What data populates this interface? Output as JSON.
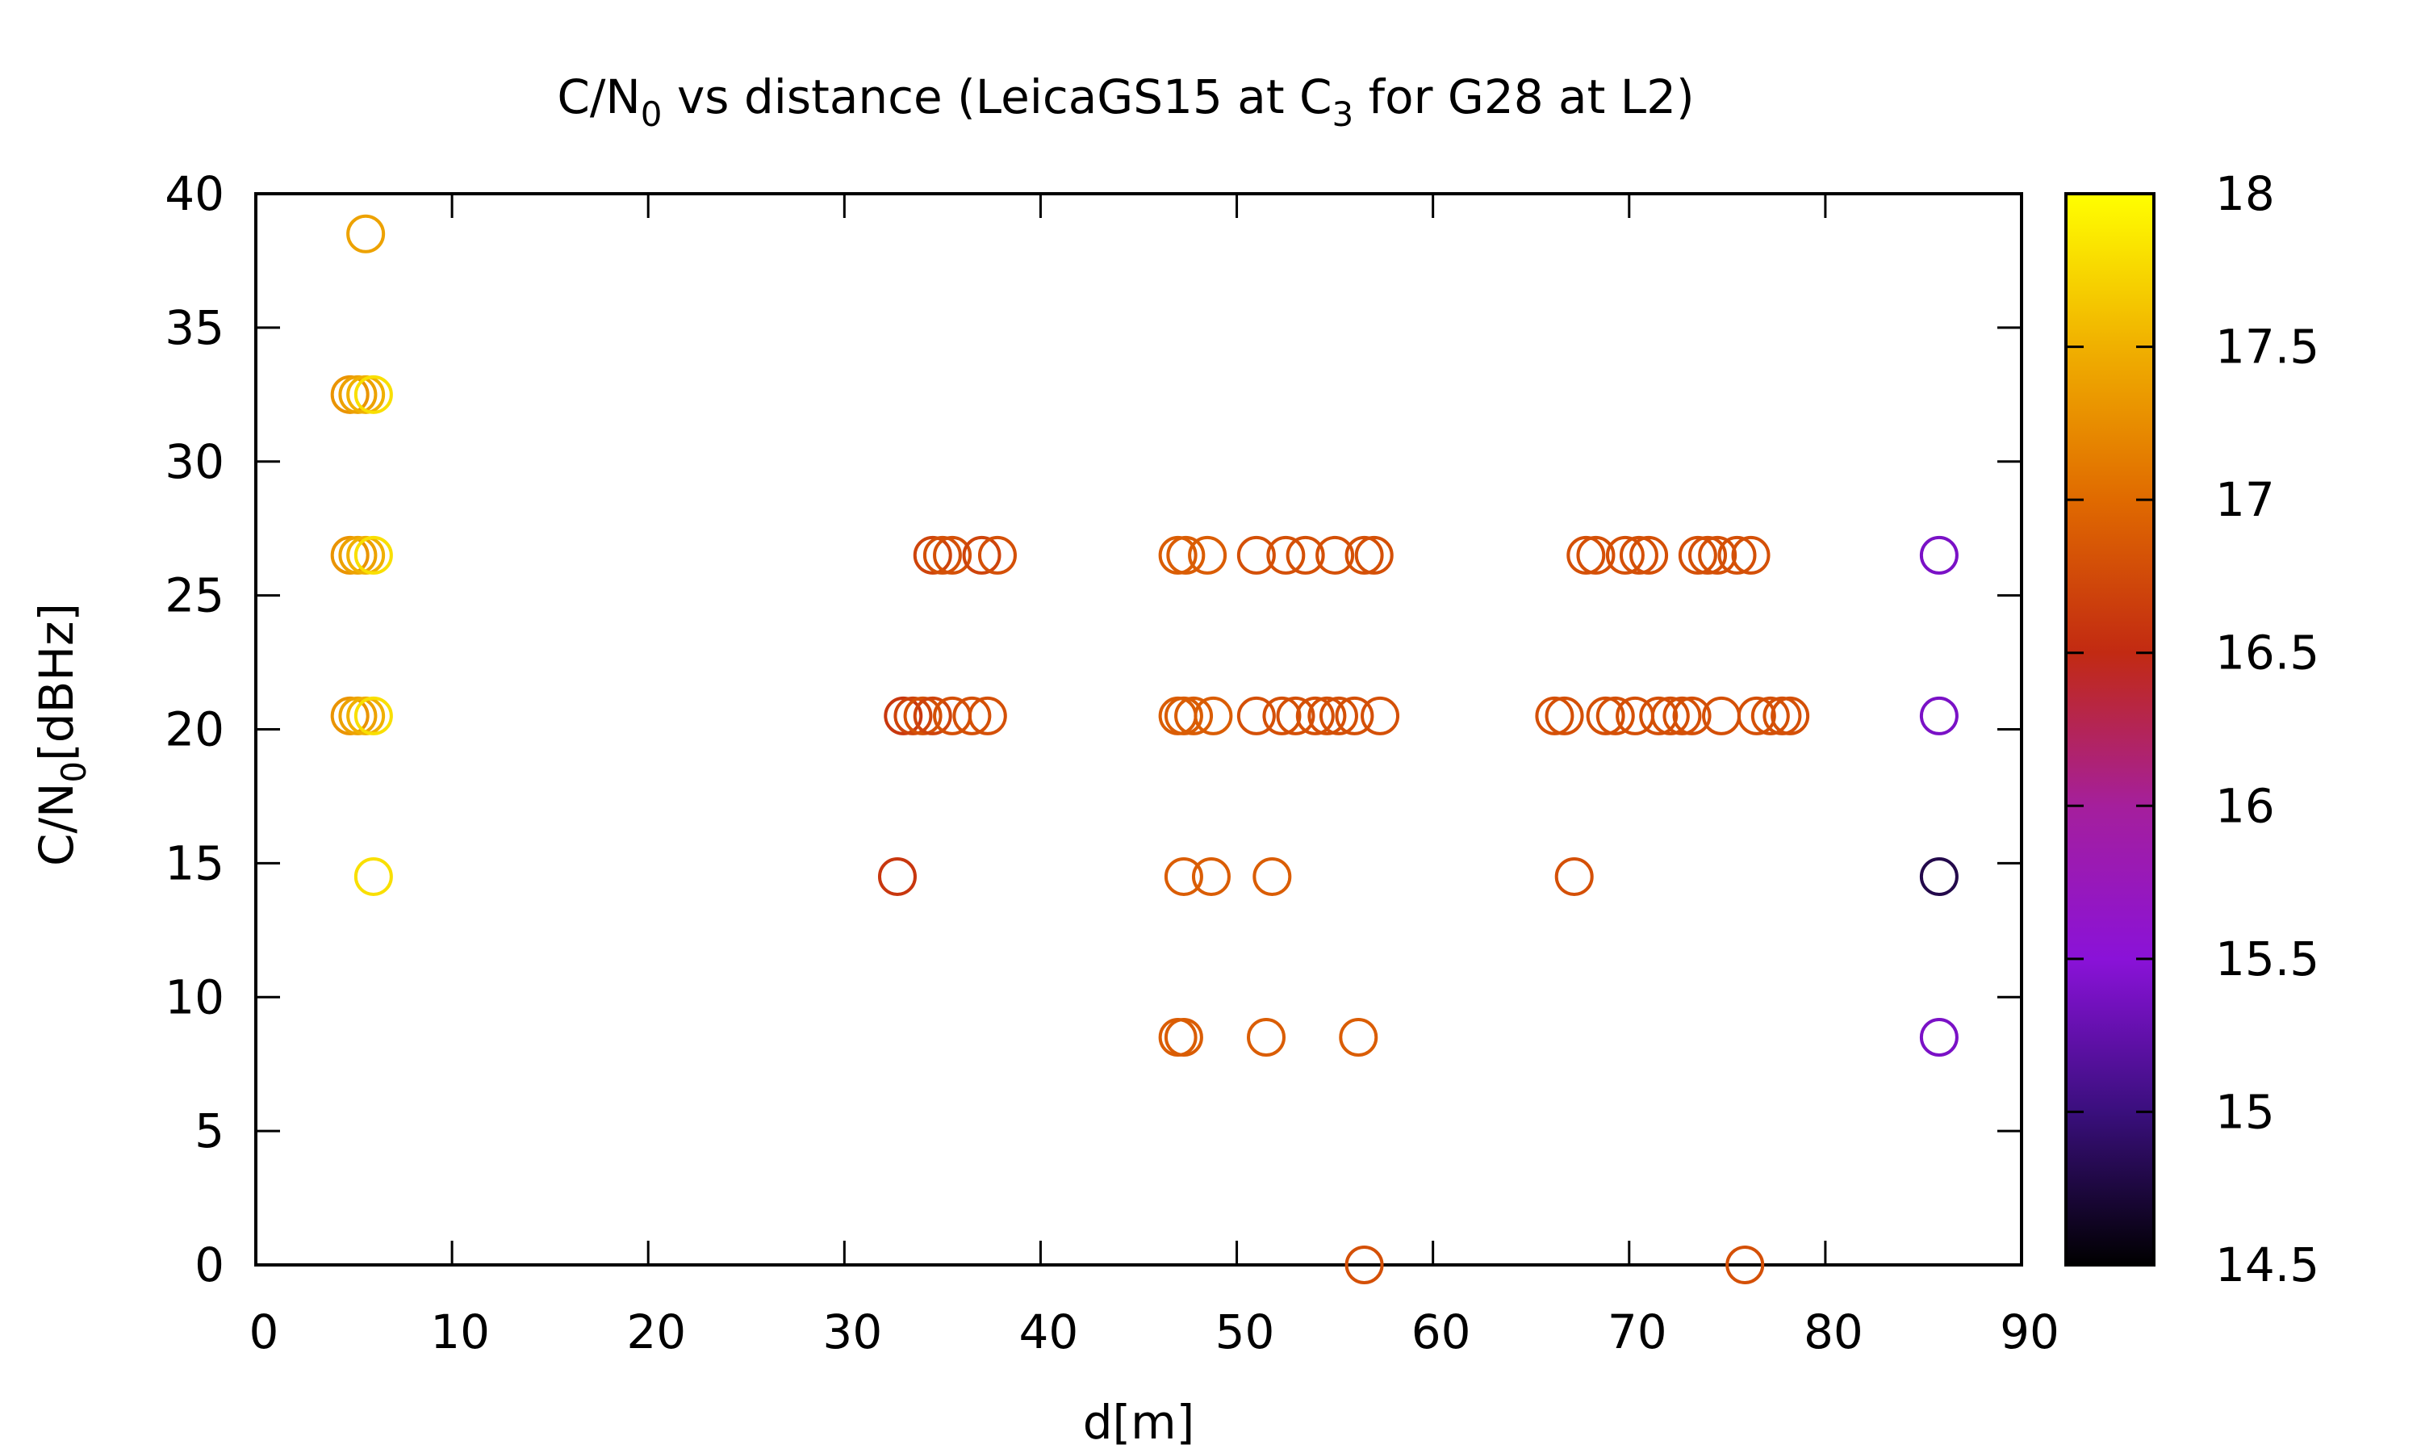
{
  "chart_data": {
    "type": "scatter",
    "title": {
      "pre": "C/N",
      "sub1": "0",
      "mid": " vs distance (LeicaGS15 at C",
      "sub2": "3",
      "post": " for G28 at L2)"
    },
    "xlabel": "d[m]",
    "ylabel": {
      "pre": "C/N",
      "sub": "0",
      "post": "[dBHz]"
    },
    "xlim": [
      0,
      90
    ],
    "ylim": [
      0,
      40
    ],
    "xticks": [
      0,
      10,
      20,
      30,
      40,
      50,
      60,
      70,
      80,
      90
    ],
    "yticks": [
      0,
      5,
      10,
      15,
      20,
      25,
      30,
      35,
      40
    ],
    "grid": false,
    "marker": "open-circle",
    "colorbar": {
      "range": [
        14.5,
        18
      ],
      "ticks": [
        "18",
        "17.5",
        "17",
        "16.5",
        "16",
        "15.5",
        "15",
        "14.5"
      ],
      "palette": [
        "#000000",
        "#3a0f7d",
        "#8a12d8",
        "#a51f9c",
        "#c22a12",
        "#e06a00",
        "#f0b000",
        "#ffff00"
      ]
    },
    "points": [
      {
        "x": 5.6,
        "y": 38.5,
        "c": 17.4
      },
      {
        "x": 4.8,
        "y": 32.5,
        "c": 17.3
      },
      {
        "x": 5.2,
        "y": 32.5,
        "c": 17.4
      },
      {
        "x": 5.6,
        "y": 32.5,
        "c": 17.5
      },
      {
        "x": 6.0,
        "y": 32.5,
        "c": 17.8
      },
      {
        "x": 4.8,
        "y": 26.5,
        "c": 17.3
      },
      {
        "x": 5.2,
        "y": 26.5,
        "c": 17.4
      },
      {
        "x": 5.6,
        "y": 26.5,
        "c": 17.5
      },
      {
        "x": 6.0,
        "y": 26.5,
        "c": 17.8
      },
      {
        "x": 4.8,
        "y": 20.5,
        "c": 17.3
      },
      {
        "x": 5.2,
        "y": 20.5,
        "c": 17.4
      },
      {
        "x": 5.6,
        "y": 20.5,
        "c": 17.5
      },
      {
        "x": 6.0,
        "y": 20.5,
        "c": 17.8
      },
      {
        "x": 6.0,
        "y": 14.5,
        "c": 17.8
      },
      {
        "x": 34.5,
        "y": 26.5,
        "c": 16.7
      },
      {
        "x": 35.0,
        "y": 26.5,
        "c": 16.8
      },
      {
        "x": 35.5,
        "y": 26.5,
        "c": 16.8
      },
      {
        "x": 37.0,
        "y": 26.5,
        "c": 16.7
      },
      {
        "x": 37.8,
        "y": 26.5,
        "c": 16.8
      },
      {
        "x": 33.0,
        "y": 20.5,
        "c": 16.6
      },
      {
        "x": 33.5,
        "y": 20.5,
        "c": 16.7
      },
      {
        "x": 34.0,
        "y": 20.5,
        "c": 16.8
      },
      {
        "x": 34.5,
        "y": 20.5,
        "c": 16.7
      },
      {
        "x": 35.5,
        "y": 20.5,
        "c": 16.8
      },
      {
        "x": 36.5,
        "y": 20.5,
        "c": 16.8
      },
      {
        "x": 37.3,
        "y": 20.5,
        "c": 16.8
      },
      {
        "x": 32.7,
        "y": 14.5,
        "c": 16.6
      },
      {
        "x": 47.0,
        "y": 26.5,
        "c": 16.9
      },
      {
        "x": 47.4,
        "y": 26.5,
        "c": 16.9
      },
      {
        "x": 48.5,
        "y": 26.5,
        "c": 16.9
      },
      {
        "x": 51.0,
        "y": 26.5,
        "c": 16.8
      },
      {
        "x": 52.5,
        "y": 26.5,
        "c": 16.8
      },
      {
        "x": 53.5,
        "y": 26.5,
        "c": 16.8
      },
      {
        "x": 55.0,
        "y": 26.5,
        "c": 16.8
      },
      {
        "x": 56.5,
        "y": 26.5,
        "c": 16.8
      },
      {
        "x": 57.0,
        "y": 26.5,
        "c": 16.8
      },
      {
        "x": 47.0,
        "y": 20.5,
        "c": 16.9
      },
      {
        "x": 47.3,
        "y": 20.5,
        "c": 16.9
      },
      {
        "x": 47.8,
        "y": 20.5,
        "c": 16.9
      },
      {
        "x": 48.8,
        "y": 20.5,
        "c": 16.9
      },
      {
        "x": 51.0,
        "y": 20.5,
        "c": 16.8
      },
      {
        "x": 52.3,
        "y": 20.5,
        "c": 16.8
      },
      {
        "x": 53.0,
        "y": 20.5,
        "c": 16.8
      },
      {
        "x": 54.0,
        "y": 20.5,
        "c": 16.8
      },
      {
        "x": 54.6,
        "y": 20.5,
        "c": 16.8
      },
      {
        "x": 55.2,
        "y": 20.5,
        "c": 16.8
      },
      {
        "x": 56.0,
        "y": 20.5,
        "c": 16.8
      },
      {
        "x": 57.3,
        "y": 20.5,
        "c": 16.8
      },
      {
        "x": 47.3,
        "y": 14.5,
        "c": 16.9
      },
      {
        "x": 48.7,
        "y": 14.5,
        "c": 16.9
      },
      {
        "x": 51.8,
        "y": 14.5,
        "c": 16.9
      },
      {
        "x": 47.0,
        "y": 8.5,
        "c": 16.9
      },
      {
        "x": 47.3,
        "y": 8.5,
        "c": 16.9
      },
      {
        "x": 51.5,
        "y": 8.5,
        "c": 16.9
      },
      {
        "x": 56.2,
        "y": 8.5,
        "c": 16.9
      },
      {
        "x": 56.5,
        "y": 0,
        "c": 16.8
      },
      {
        "x": 67.8,
        "y": 26.5,
        "c": 16.8
      },
      {
        "x": 68.3,
        "y": 26.5,
        "c": 16.8
      },
      {
        "x": 69.8,
        "y": 26.5,
        "c": 16.8
      },
      {
        "x": 70.5,
        "y": 26.5,
        "c": 16.8
      },
      {
        "x": 71.0,
        "y": 26.5,
        "c": 16.8
      },
      {
        "x": 73.5,
        "y": 26.5,
        "c": 16.8
      },
      {
        "x": 74.0,
        "y": 26.5,
        "c": 16.8
      },
      {
        "x": 74.5,
        "y": 26.5,
        "c": 16.8
      },
      {
        "x": 75.5,
        "y": 26.5,
        "c": 16.8
      },
      {
        "x": 76.2,
        "y": 26.5,
        "c": 16.8
      },
      {
        "x": 66.2,
        "y": 20.5,
        "c": 16.8
      },
      {
        "x": 66.7,
        "y": 20.5,
        "c": 16.8
      },
      {
        "x": 68.8,
        "y": 20.5,
        "c": 16.8
      },
      {
        "x": 69.3,
        "y": 20.5,
        "c": 16.8
      },
      {
        "x": 70.3,
        "y": 20.5,
        "c": 16.8
      },
      {
        "x": 71.5,
        "y": 20.5,
        "c": 16.8
      },
      {
        "x": 72.1,
        "y": 20.5,
        "c": 16.8
      },
      {
        "x": 72.7,
        "y": 20.5,
        "c": 16.8
      },
      {
        "x": 73.2,
        "y": 20.5,
        "c": 16.8
      },
      {
        "x": 74.7,
        "y": 20.5,
        "c": 16.8
      },
      {
        "x": 76.5,
        "y": 20.5,
        "c": 16.8
      },
      {
        "x": 77.2,
        "y": 20.5,
        "c": 16.8
      },
      {
        "x": 77.8,
        "y": 20.5,
        "c": 16.8
      },
      {
        "x": 78.2,
        "y": 20.5,
        "c": 16.8
      },
      {
        "x": 67.2,
        "y": 14.5,
        "c": 16.8
      },
      {
        "x": 75.9,
        "y": 0,
        "c": 16.8
      },
      {
        "x": 85.8,
        "y": 26.5,
        "c": 15.4
      },
      {
        "x": 85.8,
        "y": 20.5,
        "c": 15.4
      },
      {
        "x": 85.8,
        "y": 14.5,
        "c": 14.8
      },
      {
        "x": 85.8,
        "y": 8.5,
        "c": 15.4
      }
    ]
  }
}
